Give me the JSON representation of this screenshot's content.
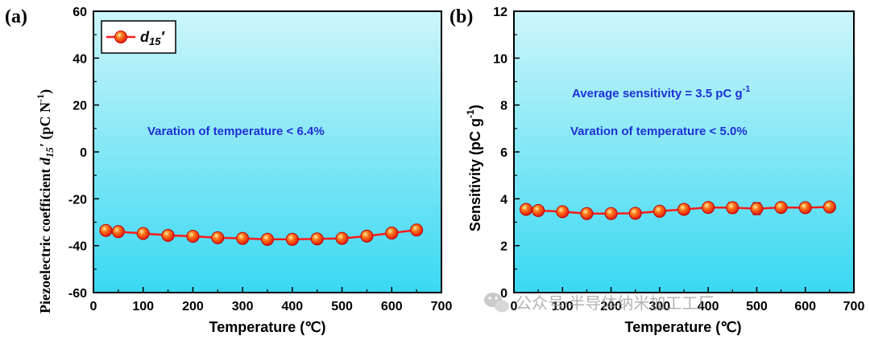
{
  "chart_data": [
    {
      "type": "line",
      "panel_label": "(a)",
      "xlabel": "Temperature (℃)",
      "ylabel": "Piezoelectric coefficient d15′ (pC N⁻¹)",
      "ylabel_parts": {
        "prefix": "Piezoelectric coefficient ",
        "sym": "d",
        "sub": "15",
        "prime": "′",
        "unit": " (pC N",
        "sup": "-1",
        "close": ")"
      },
      "xlim": [
        0,
        700
      ],
      "ylim": [
        -60,
        60
      ],
      "xticks": [
        "0",
        "100",
        "200",
        "300",
        "400",
        "500",
        "600",
        "700"
      ],
      "yticks": [
        "-60",
        "-40",
        "-20",
        "0",
        "20",
        "40",
        "60"
      ],
      "grid": false,
      "legend": {
        "position": "top-left",
        "entries": [
          {
            "sym": "d",
            "sub": "15",
            "prime": "′"
          }
        ]
      },
      "annotations": [
        "Varation of temperature < 6.4%"
      ],
      "series": [
        {
          "name": "d15′",
          "color": "#ff1a1a",
          "x": [
            25,
            50,
            100,
            150,
            200,
            250,
            300,
            350,
            400,
            450,
            500,
            550,
            600,
            650
          ],
          "y": [
            -33.5,
            -34.0,
            -34.8,
            -35.6,
            -36.0,
            -36.6,
            -36.9,
            -37.3,
            -37.3,
            -37.1,
            -36.9,
            -35.9,
            -34.6,
            -33.3
          ],
          "err": [
            0,
            0,
            0,
            0,
            0,
            0,
            0,
            0,
            0,
            0,
            0,
            0,
            0,
            0
          ]
        }
      ]
    },
    {
      "type": "line",
      "panel_label": "(b)",
      "xlabel": "Temperature (℃)",
      "ylabel": "Sensitivity (pC g⁻¹)",
      "ylabel_parts": {
        "main": "Sensitivity  (pC g",
        "sup": "-1",
        "close": ")"
      },
      "xlim": [
        0,
        700
      ],
      "ylim": [
        0,
        12
      ],
      "xticks": [
        "0",
        "100",
        "200",
        "300",
        "400",
        "500",
        "600",
        "700"
      ],
      "yticks": [
        "0",
        "2",
        "4",
        "6",
        "8",
        "10",
        "12"
      ],
      "grid": false,
      "annotations": [
        "Average sensitivity = 3.5 pC g",
        "Varation of temperature < 5.0%"
      ],
      "annotation_sup": "-1",
      "series": [
        {
          "name": "Sensitivity",
          "color": "#ff1a1a",
          "x": [
            25,
            50,
            100,
            150,
            200,
            250,
            300,
            350,
            400,
            450,
            500,
            550,
            600,
            650
          ],
          "y": [
            3.55,
            3.5,
            3.45,
            3.37,
            3.37,
            3.38,
            3.47,
            3.55,
            3.63,
            3.62,
            3.58,
            3.63,
            3.62,
            3.65
          ],
          "err": [
            0.18,
            0.06,
            0.05,
            0.05,
            0.05,
            0.05,
            0.06,
            0.05,
            0.05,
            0.22,
            0.25,
            0.05,
            0.05,
            0.05
          ]
        }
      ]
    }
  ],
  "watermark": "公众号·半导体纳米加工工厂",
  "colors": {
    "bg_top": "#ccf6fa",
    "bg_bottom": "#39d8f2",
    "line": "#ff1a1a",
    "annotation": "#1f2fd6"
  }
}
